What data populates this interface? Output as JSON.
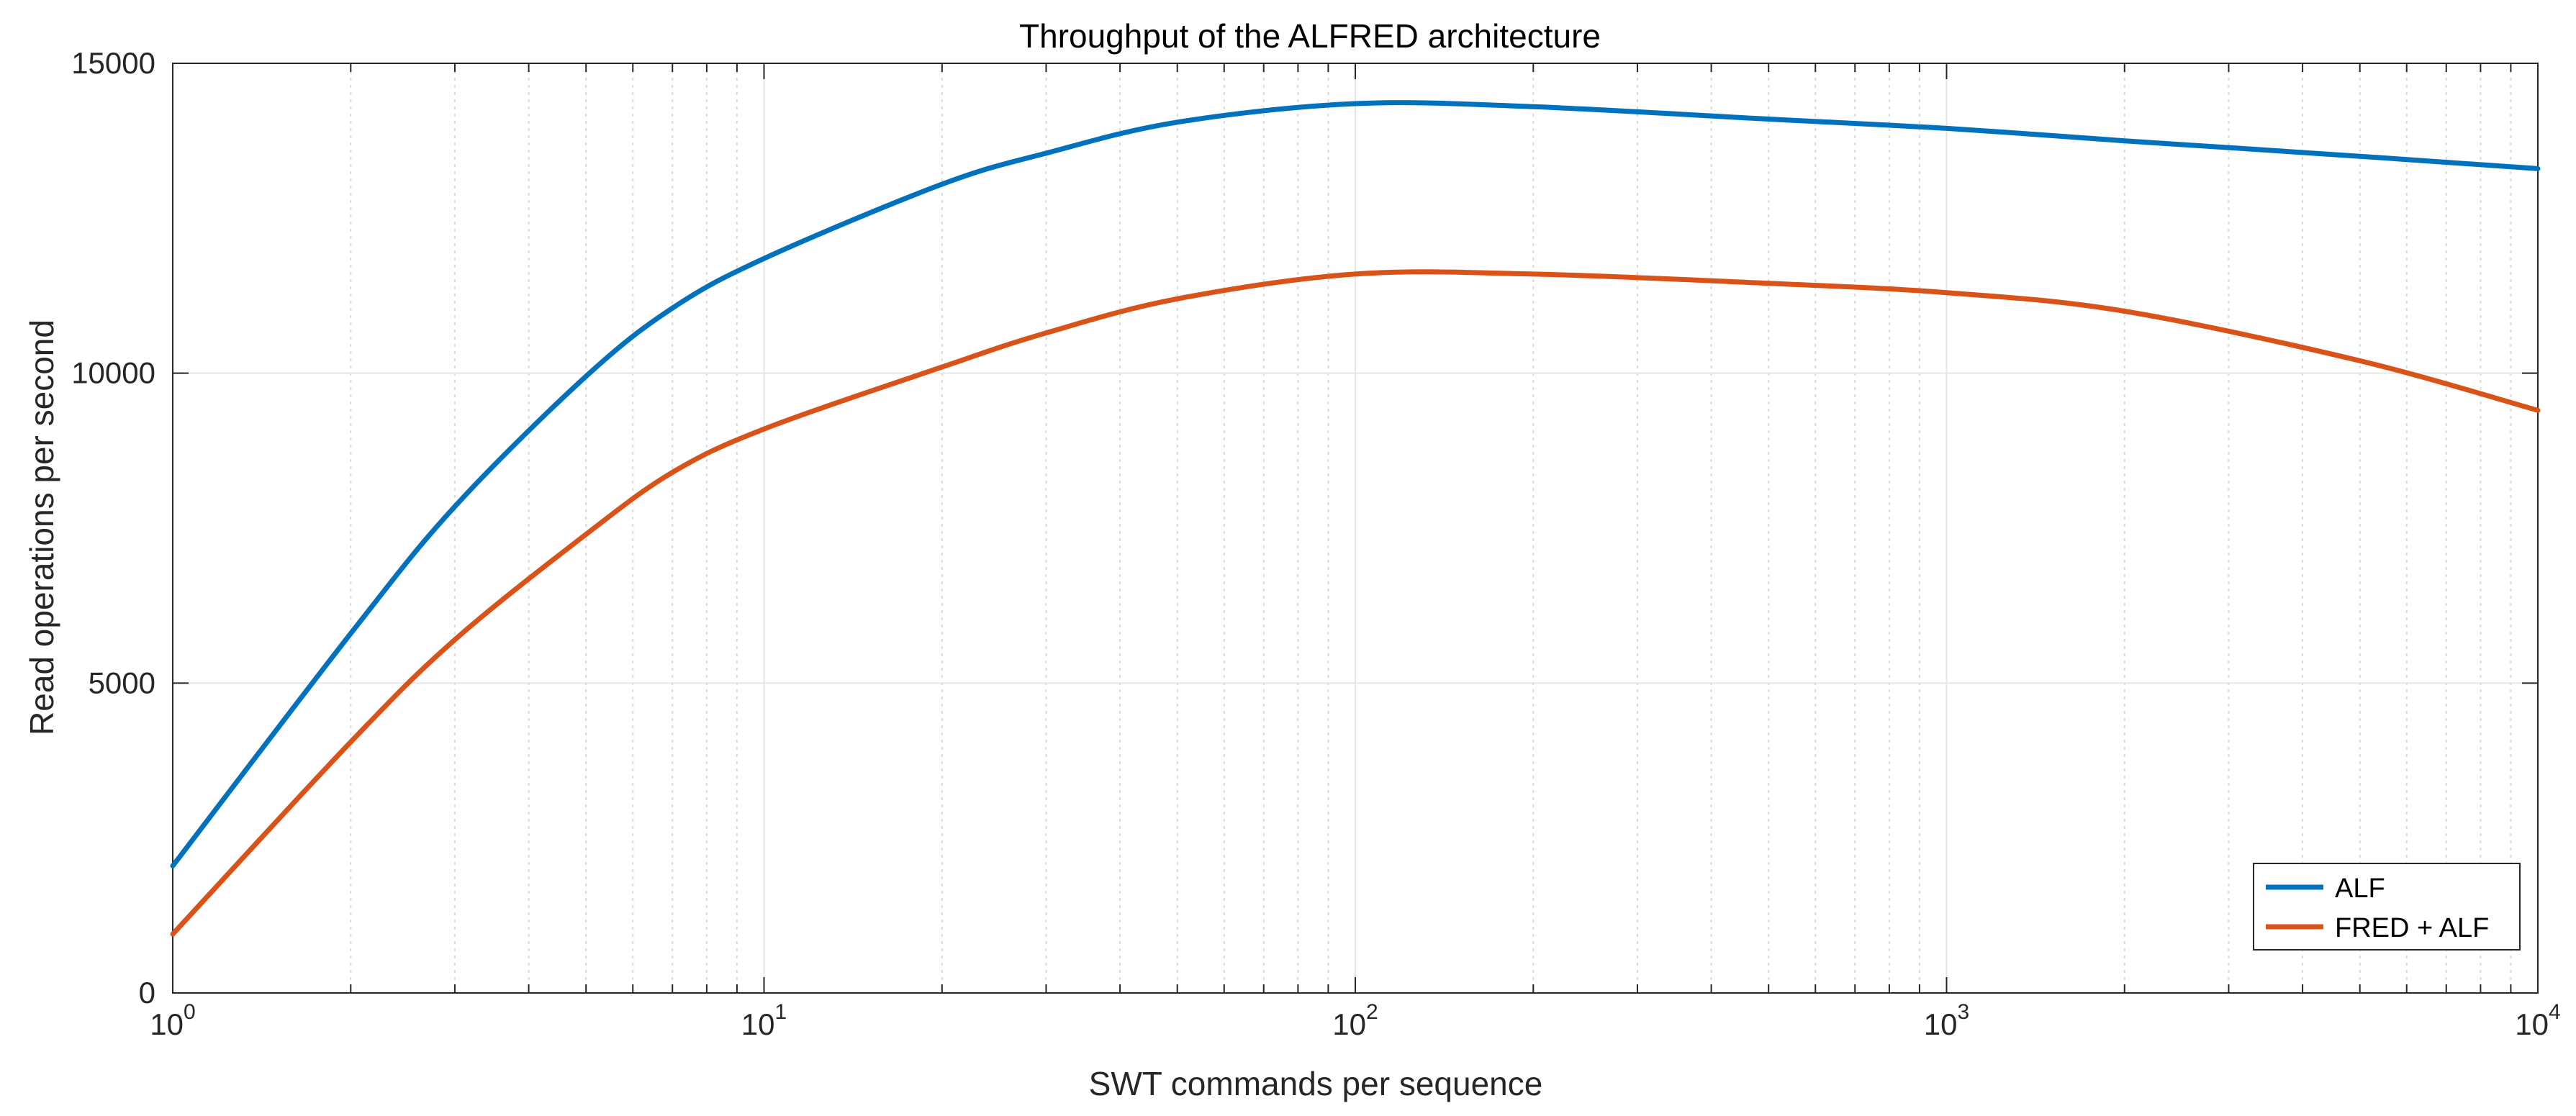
{
  "chart_data": {
    "type": "line",
    "title": "Throughput of the ALFRED architecture",
    "xlabel": "SWT commands per sequence",
    "ylabel": "Read operations per second",
    "xscale": "log",
    "xlim": [
      1,
      10000
    ],
    "ylim": [
      0,
      15000
    ],
    "grid": true,
    "legend_position": "bottom-right",
    "x_ticks": [
      {
        "base": "10",
        "exp": "0"
      },
      {
        "base": "10",
        "exp": "1"
      },
      {
        "base": "10",
        "exp": "2"
      },
      {
        "base": "10",
        "exp": "3"
      },
      {
        "base": "10",
        "exp": "4"
      }
    ],
    "y_ticks": [
      "0",
      "5000",
      "10000",
      "15000"
    ],
    "x": [
      1,
      2,
      3,
      5,
      7,
      10,
      20,
      30,
      50,
      100,
      200,
      500,
      1000,
      2000,
      5000,
      10000
    ],
    "series": [
      {
        "name": "ALF",
        "color": "#0072BD",
        "values": [
          2050,
          5800,
          7850,
          9950,
          11050,
          11850,
          13050,
          13550,
          14050,
          14350,
          14300,
          14100,
          13950,
          13750,
          13500,
          13300
        ]
      },
      {
        "name": "FRED + ALF",
        "color": "#D95319",
        "values": [
          950,
          4050,
          5700,
          7400,
          8400,
          9100,
          10100,
          10650,
          11200,
          11600,
          11600,
          11450,
          11300,
          11000,
          10200,
          9400
        ]
      }
    ]
  }
}
